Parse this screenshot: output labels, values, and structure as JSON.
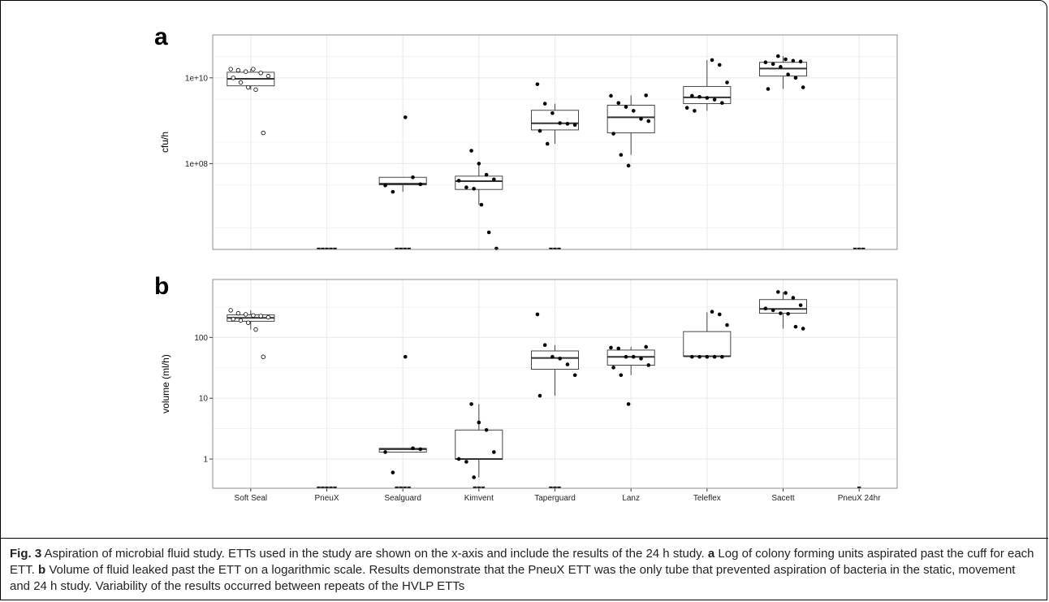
{
  "chart_data": [
    {
      "panel": "a",
      "type": "box-jitter",
      "ylabel": "cfu/h",
      "yscale": "log10",
      "ylim": [
        1000000.0,
        100000000000.0
      ],
      "yticks": [
        {
          "value": 100000000.0,
          "label": "1e+08"
        },
        {
          "value": 10000000000.0,
          "label": "1e+10"
        }
      ],
      "grid": true,
      "categories": [
        "Soft Seal",
        "PneuX",
        "Sealguard",
        "Kimvent",
        "Taperguard",
        "Lanz",
        "Teleflex",
        "Sacett",
        "PneuX 24hr"
      ],
      "groups": [
        {
          "category": "Soft Seal",
          "box": {
            "min": 5300000000.0,
            "q1": 6500000000.0,
            "median": 9500000000.0,
            "q3": 13500000000.0,
            "max": 16000000000.0
          },
          "points": [
            16000000000.0,
            15000000000.0,
            14000000000.0,
            16000000000.0,
            13000000000.0,
            11000000000.0,
            10000000000.0,
            7800000000.0,
            6000000000.0,
            5300000000.0,
            520000000.0
          ],
          "open_points": true
        },
        {
          "category": "PneuX",
          "box": null,
          "points": [],
          "zero_count": 5
        },
        {
          "category": "Sealguard",
          "box": {
            "min": 22000000.0,
            "q1": 32000000.0,
            "median": 34000000.0,
            "q3": 48000000.0,
            "max": 48000000.0
          },
          "points": [
            1200000000.0,
            48000000.0,
            33000000.0,
            31000000.0,
            22000000.0
          ],
          "zero_count": 4
        },
        {
          "category": "Kimvent",
          "box": {
            "min": 11000000.0,
            "q1": 25000000.0,
            "median": 39000000.0,
            "q3": 51000000.0,
            "max": 100000000.0
          },
          "points": [
            200000000.0,
            100000000.0,
            55000000.0,
            43000000.0,
            40000000.0,
            28000000.0,
            26000000.0,
            11000000.0,
            2500000.0,
            1050000.0
          ]
        },
        {
          "category": "Taperguard",
          "box": {
            "min": 290000000.0,
            "q1": 610000000.0,
            "median": 870000000.0,
            "q3": 1750000000.0,
            "max": 2500000000.0
          },
          "points": [
            7100000000.0,
            2500000000.0,
            1500000000.0,
            880000000.0,
            850000000.0,
            800000000.0,
            580000000.0,
            290000000.0
          ],
          "zero_count": 3
        },
        {
          "category": "Lanz",
          "box": {
            "min": 160000000.0,
            "q1": 520000000.0,
            "median": 1200000000.0,
            "q3": 2300000000.0,
            "max": 3900000000.0
          },
          "points": [
            3900000000.0,
            3800000000.0,
            2600000000.0,
            2100000000.0,
            1700000000.0,
            1100000000.0,
            980000000.0,
            500000000.0,
            160000000.0,
            90000000.0
          ]
        },
        {
          "category": "Teleflex",
          "box": {
            "min": 1700000000.0,
            "q1": 2500000000.0,
            "median": 3500000000.0,
            "q3": 6300000000.0,
            "max": 26000000000.0
          },
          "points": [
            26000000000.0,
            20000000000.0,
            7800000000.0,
            3800000000.0,
            3600000000.0,
            3400000000.0,
            3100000000.0,
            2600000000.0,
            2000000000.0,
            1700000000.0
          ]
        },
        {
          "category": "Sacett",
          "box": {
            "min": 5500000000.0,
            "q1": 11000000000.0,
            "median": 16500000000.0,
            "q3": 23000000000.0,
            "max": 32000000000.0
          },
          "points": [
            32000000000.0,
            27000000000.0,
            25000000000.0,
            24000000000.0,
            23000000000.0,
            21000000000.0,
            18000000000.0,
            12000000000.0,
            10000000000.0,
            6000000000.0,
            5500000000.0
          ]
        },
        {
          "category": "PneuX 24hr",
          "box": null,
          "points": [],
          "zero_count": 3
        }
      ]
    },
    {
      "panel": "b",
      "type": "box-jitter",
      "ylabel": "volume (ml/h)",
      "yscale": "log10",
      "ylim": [
        0.33,
        900
      ],
      "yticks": [
        {
          "value": 1,
          "label": "1"
        },
        {
          "value": 10,
          "label": "10"
        },
        {
          "value": 100,
          "label": "100"
        }
      ],
      "grid": true,
      "categories": [
        "Soft Seal",
        "PneuX",
        "Sealguard",
        "Kimvent",
        "Taperguard",
        "Lanz",
        "Teleflex",
        "Sacett",
        "PneuX 24hr"
      ],
      "groups": [
        {
          "category": "Soft Seal",
          "box": {
            "min": 135,
            "q1": 185,
            "median": 210,
            "q3": 235,
            "max": 280
          },
          "points": [
            280,
            250,
            240,
            230,
            225,
            215,
            200,
            190,
            175,
            135,
            48
          ],
          "open_points": true
        },
        {
          "category": "PneuX",
          "box": null,
          "points": [],
          "zero_count": 5
        },
        {
          "category": "Sealguard",
          "box": {
            "min": 1.3,
            "q1": 1.3,
            "median": 1.45,
            "q3": 1.5,
            "max": 1.5
          },
          "points": [
            48,
            1.5,
            1.45,
            1.3,
            0.6
          ],
          "zero_count": 4
        },
        {
          "category": "Kimvent",
          "box": {
            "min": 0.5,
            "q1": 1.0,
            "median": 1.0,
            "q3": 3.0,
            "max": 8
          },
          "points": [
            8,
            4,
            3,
            1.3,
            1.0,
            0.9,
            0.5
          ],
          "zero_count": 3
        },
        {
          "category": "Taperguard",
          "box": {
            "min": 11,
            "q1": 30,
            "median": 46,
            "q3": 60,
            "max": 75
          },
          "points": [
            240,
            75,
            48,
            45,
            36,
            24,
            11
          ],
          "zero_count": 3
        },
        {
          "category": "Lanz",
          "box": {
            "min": 24,
            "q1": 35,
            "median": 48,
            "q3": 62,
            "max": 70
          },
          "points": [
            70,
            68,
            66,
            48,
            48,
            45,
            35,
            32,
            24,
            8
          ]
        },
        {
          "category": "Teleflex",
          "box": {
            "min": 48,
            "q1": 49,
            "median": 49,
            "q3": 125,
            "max": 260
          },
          "points": [
            265,
            240,
            160,
            48,
            48,
            48,
            48,
            48
          ]
        },
        {
          "category": "Sacett",
          "box": {
            "min": 140,
            "q1": 250,
            "median": 295,
            "q3": 420,
            "max": 560
          },
          "points": [
            560,
            540,
            450,
            340,
            300,
            280,
            250,
            245,
            150,
            140
          ]
        },
        {
          "category": "PneuX 24hr",
          "box": null,
          "points": [],
          "zero_count": 1
        }
      ]
    }
  ],
  "panel_labels": {
    "a": "a",
    "b": "b"
  },
  "caption": {
    "fig_label": "Fig. 3",
    "s1": " Aspiration of microbial fluid study. ETTs used in the study are shown on the x-axis and include the results of the 24 h study. ",
    "a_label": "a",
    "s2": " Log of colony forming units aspirated past the cuff for each ETT. ",
    "b_label": "b",
    "s3": " Volume of fluid leaked past the ETT on a logarithmic scale. Results demonstrate that the PneuX ETT was the only tube that prevented aspiration of bacteria in the static, movement and 24 h study. Variability of the results occurred between repeats of the HVLP ETTs"
  },
  "colors": {
    "panel_bg": "#ffffff",
    "grid": "#ebebeb",
    "panel_border": "#8c8c8c",
    "box": "#333333",
    "point": "#000000"
  }
}
